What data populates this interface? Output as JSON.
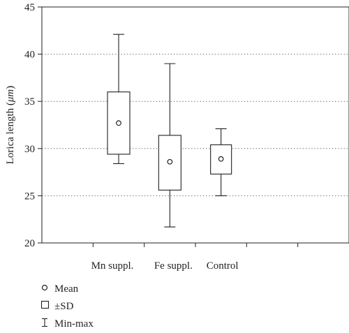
{
  "chart_data": {
    "type": "box",
    "ylabel_prefix": "Lorica length (",
    "ylabel_unit": "μm",
    "ylabel_suffix": ")",
    "ylim": [
      20,
      45
    ],
    "yticks": [
      20,
      25,
      30,
      35,
      40,
      45
    ],
    "grid": "horizontal dotted",
    "categories": [
      "Mn suppl.",
      "Fe suppl.",
      "Control"
    ],
    "boxes": [
      {
        "category": "Mn suppl.",
        "mean": 32.7,
        "sd_low": 29.4,
        "sd_high": 36.0,
        "min": 28.4,
        "max": 42.1
      },
      {
        "category": "Fe suppl.",
        "mean": 28.6,
        "sd_low": 25.6,
        "sd_high": 31.4,
        "min": 21.7,
        "max": 39.0
      },
      {
        "category": "Control",
        "mean": 28.9,
        "sd_low": 27.3,
        "sd_high": 30.4,
        "min": 25.0,
        "max": 32.1
      }
    ],
    "legend": {
      "position": "bottom-left",
      "entries": [
        {
          "symbol": "circle",
          "label": "Mean"
        },
        {
          "symbol": "square",
          "label": "±SD"
        },
        {
          "symbol": "whisker",
          "label": "Min-max"
        }
      ]
    }
  }
}
